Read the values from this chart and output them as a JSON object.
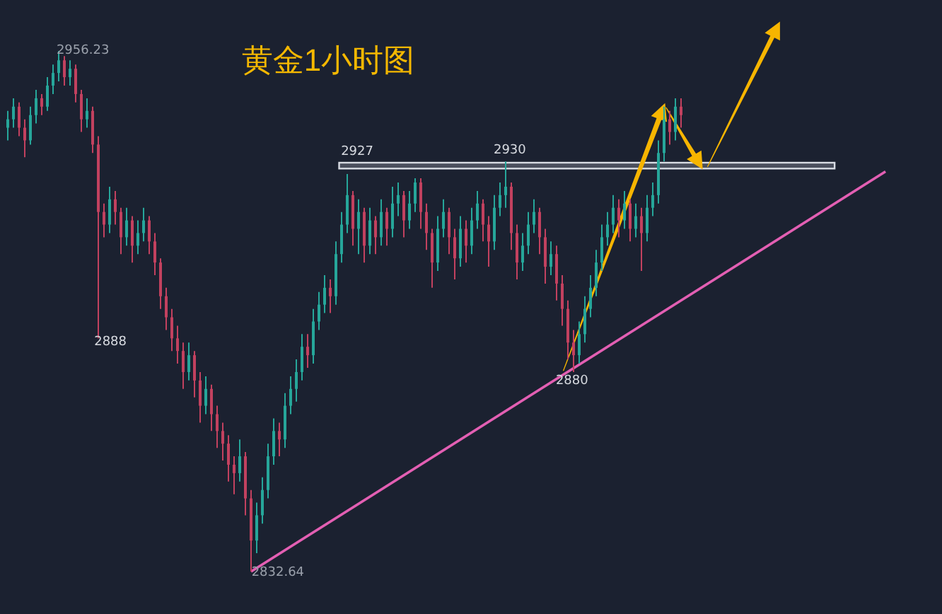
{
  "chart_data": {
    "type": "candlestick",
    "title": "黄金1小时图",
    "categories": [
      null,
      null,
      null,
      null,
      null,
      null,
      null,
      null,
      null,
      null,
      null,
      null,
      null,
      null,
      null,
      null,
      null,
      null,
      null,
      null,
      null,
      null,
      null,
      null,
      null,
      null,
      null,
      null,
      null,
      null,
      null,
      null,
      null,
      null,
      null,
      null,
      null,
      null,
      null,
      null,
      null,
      null,
      null,
      null,
      null,
      null,
      null,
      null,
      null,
      null,
      null,
      null,
      null,
      null,
      null,
      null,
      null,
      null,
      null,
      null,
      null,
      null,
      null,
      null,
      null,
      null,
      null,
      null,
      null,
      null,
      null,
      null,
      null,
      null,
      null,
      null,
      null,
      null,
      null,
      null,
      null,
      null,
      null,
      null,
      null,
      null,
      null,
      null,
      null,
      null,
      null,
      null,
      null,
      null,
      null,
      null,
      null,
      null,
      null,
      null,
      null,
      null,
      null,
      null,
      null,
      null,
      null,
      null,
      null,
      null,
      null,
      null,
      null,
      null,
      null,
      null,
      null,
      null,
      null,
      null
    ],
    "ohlc": [
      [
        2938,
        2942,
        2935,
        2940
      ],
      [
        2940,
        2945,
        2938,
        2943
      ],
      [
        2943,
        2944,
        2936,
        2938
      ],
      [
        2938,
        2940,
        2931,
        2935
      ],
      [
        2935,
        2943,
        2934,
        2941
      ],
      [
        2941,
        2947,
        2939,
        2945
      ],
      [
        2945,
        2946,
        2941,
        2943
      ],
      [
        2943,
        2950,
        2942,
        2948
      ],
      [
        2948,
        2953,
        2946,
        2951
      ],
      [
        2951,
        2956.23,
        2949,
        2954
      ],
      [
        2954,
        2955,
        2948,
        2950
      ],
      [
        2950,
        2954,
        2948,
        2952
      ],
      [
        2952,
        2953,
        2944,
        2946
      ],
      [
        2946,
        2947,
        2937,
        2940
      ],
      [
        2940,
        2945,
        2938,
        2942
      ],
      [
        2942,
        2943,
        2932,
        2934
      ],
      [
        2934,
        2936,
        2888,
        2918
      ],
      [
        2918,
        2920,
        2912,
        2915
      ],
      [
        2915,
        2924,
        2913,
        2921
      ],
      [
        2921,
        2923,
        2915,
        2918
      ],
      [
        2918,
        2919,
        2908,
        2912
      ],
      [
        2912,
        2919,
        2910,
        2916
      ],
      [
        2916,
        2917,
        2906,
        2910
      ],
      [
        2910,
        2916,
        2908,
        2913
      ],
      [
        2913,
        2919,
        2911,
        2916
      ],
      [
        2916,
        2917,
        2908,
        2911
      ],
      [
        2911,
        2913,
        2903,
        2906
      ],
      [
        2906,
        2907,
        2895,
        2898
      ],
      [
        2898,
        2900,
        2890,
        2893
      ],
      [
        2893,
        2895,
        2885,
        2888
      ],
      [
        2888,
        2891,
        2882,
        2885
      ],
      [
        2885,
        2887,
        2876,
        2880
      ],
      [
        2880,
        2887,
        2878,
        2884
      ],
      [
        2884,
        2885,
        2874,
        2878
      ],
      [
        2878,
        2880,
        2868,
        2872
      ],
      [
        2872,
        2879,
        2870,
        2876
      ],
      [
        2876,
        2877,
        2866,
        2870
      ],
      [
        2870,
        2872,
        2862,
        2866
      ],
      [
        2866,
        2868,
        2859,
        2863
      ],
      [
        2863,
        2865,
        2854,
        2858
      ],
      [
        2858,
        2860,
        2851,
        2856
      ],
      [
        2856,
        2864,
        2854,
        2860
      ],
      [
        2860,
        2861,
        2846,
        2850
      ],
      [
        2850,
        2852,
        2832.64,
        2840
      ],
      [
        2840,
        2849,
        2837,
        2846
      ],
      [
        2846,
        2855,
        2844,
        2852
      ],
      [
        2852,
        2863,
        2850,
        2860
      ],
      [
        2860,
        2869,
        2858,
        2866
      ],
      [
        2866,
        2868,
        2860,
        2864
      ],
      [
        2864,
        2875,
        2862,
        2872
      ],
      [
        2872,
        2879,
        2870,
        2876
      ],
      [
        2876,
        2883,
        2873,
        2880
      ],
      [
        2880,
        2889,
        2878,
        2886
      ],
      [
        2886,
        2889,
        2881,
        2884
      ],
      [
        2884,
        2895,
        2882,
        2892
      ],
      [
        2892,
        2899,
        2890,
        2896
      ],
      [
        2896,
        2903,
        2894,
        2900
      ],
      [
        2900,
        2902,
        2894,
        2898
      ],
      [
        2898,
        2911,
        2896,
        2908
      ],
      [
        2908,
        2918,
        2906,
        2915
      ],
      [
        2915,
        2927,
        2913,
        2922
      ],
      [
        2922,
        2923,
        2910,
        2914
      ],
      [
        2914,
        2921,
        2908,
        2918
      ],
      [
        2918,
        2919,
        2906,
        2910
      ],
      [
        2910,
        2919,
        2908,
        2916
      ],
      [
        2916,
        2917,
        2908,
        2912
      ],
      [
        2912,
        2921,
        2910,
        2918
      ],
      [
        2918,
        2919,
        2910,
        2914
      ],
      [
        2914,
        2924,
        2912,
        2920
      ],
      [
        2920,
        2925,
        2917,
        2922
      ],
      [
        2922,
        2923,
        2912,
        2916
      ],
      [
        2916,
        2923,
        2914,
        2920
      ],
      [
        2920,
        2926,
        2918,
        2925
      ],
      [
        2925,
        2926,
        2914,
        2918
      ],
      [
        2918,
        2920,
        2909,
        2913
      ],
      [
        2913,
        2914,
        2900,
        2906
      ],
      [
        2906,
        2917,
        2904,
        2914
      ],
      [
        2914,
        2921,
        2912,
        2918
      ],
      [
        2918,
        2919,
        2908,
        2912
      ],
      [
        2912,
        2914,
        2902,
        2907
      ],
      [
        2907,
        2917,
        2905,
        2914
      ],
      [
        2914,
        2916,
        2906,
        2910
      ],
      [
        2910,
        2919,
        2908,
        2916
      ],
      [
        2916,
        2923,
        2914,
        2920
      ],
      [
        2920,
        2921,
        2911,
        2915
      ],
      [
        2915,
        2917,
        2905,
        2911
      ],
      [
        2911,
        2922,
        2909,
        2919
      ],
      [
        2919,
        2925,
        2917,
        2922
      ],
      [
        2922,
        2930,
        2919,
        2924
      ],
      [
        2924,
        2925,
        2909,
        2913
      ],
      [
        2913,
        2915,
        2902,
        2906
      ],
      [
        2906,
        2913,
        2904,
        2910
      ],
      [
        2910,
        2918,
        2908,
        2915
      ],
      [
        2915,
        2921,
        2913,
        2918
      ],
      [
        2918,
        2919,
        2908,
        2912
      ],
      [
        2912,
        2914,
        2901,
        2905
      ],
      [
        2905,
        2911,
        2903,
        2908
      ],
      [
        2908,
        2910,
        2897,
        2901
      ],
      [
        2901,
        2903,
        2891,
        2895
      ],
      [
        2895,
        2897,
        2883,
        2887
      ],
      [
        2887,
        2890,
        2880,
        2884
      ],
      [
        2884,
        2892,
        2882,
        2889
      ],
      [
        2889,
        2898,
        2887,
        2895
      ],
      [
        2895,
        2903,
        2893,
        2900
      ],
      [
        2900,
        2909,
        2898,
        2906
      ],
      [
        2906,
        2915,
        2904,
        2912
      ],
      [
        2912,
        2918,
        2910,
        2915
      ],
      [
        2915,
        2922,
        2913,
        2919
      ],
      [
        2919,
        2921,
        2912,
        2916
      ],
      [
        2916,
        2923,
        2914,
        2920
      ],
      [
        2920,
        2921,
        2911,
        2914
      ],
      [
        2914,
        2920,
        2912,
        2917
      ],
      [
        2917,
        2919,
        2904,
        2913
      ],
      [
        2913,
        2922,
        2911,
        2919
      ],
      [
        2919,
        2925,
        2917,
        2922
      ],
      [
        2922,
        2935,
        2920,
        2932
      ],
      [
        2932,
        2943,
        2930,
        2940
      ],
      [
        2940,
        2942,
        2934,
        2937
      ],
      [
        2937,
        2945,
        2935,
        2943
      ],
      [
        2943,
        2945,
        2938,
        2941
      ]
    ],
    "colors": [
      "#26a69a",
      "#26a69a",
      "#c2415f",
      "#c2415f",
      "#26a69a",
      "#26a69a",
      "#c2415f",
      "#26a69a",
      "#26a69a",
      "#26a69a",
      "#c2415f",
      "#26a69a",
      "#c2415f",
      "#c2415f",
      "#26a69a",
      "#c2415f",
      "#c2415f",
      "#c2415f",
      "#26a69a",
      "#c2415f",
      "#c2415f",
      "#26a69a",
      "#c2415f",
      "#26a69a",
      "#26a69a",
      "#c2415f",
      "#c2415f",
      "#c2415f",
      "#c2415f",
      "#c2415f",
      "#c2415f",
      "#c2415f",
      "#26a69a",
      "#c2415f",
      "#c2415f",
      "#26a69a",
      "#c2415f",
      "#c2415f",
      "#c2415f",
      "#c2415f",
      "#c2415f",
      "#26a69a",
      "#c2415f",
      "#c2415f",
      "#26a69a",
      "#26a69a",
      "#26a69a",
      "#26a69a",
      "#c2415f",
      "#26a69a",
      "#26a69a",
      "#26a69a",
      "#26a69a",
      "#c2415f",
      "#26a69a",
      "#26a69a",
      "#26a69a",
      "#c2415f",
      "#26a69a",
      "#26a69a",
      "#26a69a",
      "#c2415f",
      "#26a69a",
      "#c2415f",
      "#26a69a",
      "#c2415f",
      "#26a69a",
      "#c2415f",
      "#26a69a",
      "#26a69a",
      "#c2415f",
      "#26a69a",
      "#26a69a",
      "#c2415f",
      "#c2415f",
      "#c2415f",
      "#26a69a",
      "#26a69a",
      "#c2415f",
      "#c2415f",
      "#26a69a",
      "#c2415f",
      "#26a69a",
      "#26a69a",
      "#c2415f",
      "#c2415f",
      "#26a69a",
      "#26a69a",
      "#26a69a",
      "#c2415f",
      "#c2415f",
      "#26a69a",
      "#26a69a",
      "#26a69a",
      "#c2415f",
      "#c2415f",
      "#26a69a",
      "#c2415f",
      "#c2415f",
      "#c2415f",
      "#c2415f",
      "#26a69a",
      "#26a69a",
      "#26a69a",
      "#26a69a",
      "#26a69a",
      "#26a69a",
      "#26a69a",
      "#c2415f",
      "#26a69a",
      "#c2415f",
      "#26a69a",
      "#c2415f",
      "#26a69a",
      "#26a69a",
      "#26a69a",
      "#26a69a",
      "#c2415f",
      "#26a69a",
      "#c2415f"
    ],
    "series": [
      {
        "type": "line",
        "values": [
          null,
          null,
          null,
          null,
          null,
          null,
          null,
          null,
          null,
          null,
          null,
          null,
          null,
          null,
          null,
          null,
          null,
          null,
          null,
          null,
          null,
          null,
          null,
          null,
          null,
          null,
          null,
          null,
          null,
          null,
          null,
          null,
          null,
          null,
          null,
          null,
          null,
          null,
          null,
          null,
          null,
          null,
          null,
          2832.64,
          null,
          null,
          null,
          null,
          null,
          null,
          null,
          null,
          null,
          null,
          null,
          null,
          null,
          null,
          null,
          null,
          null,
          null,
          null,
          null,
          null,
          null,
          null,
          null,
          null,
          null,
          null,
          null,
          null,
          null,
          null,
          null,
          null,
          null,
          null,
          null,
          null,
          null,
          null,
          null,
          null,
          null,
          null,
          null,
          null,
          null,
          null,
          null,
          null,
          null,
          null,
          null,
          null,
          null,
          null,
          null,
          null,
          null,
          null,
          null,
          null,
          null,
          null,
          null,
          null,
          null,
          null,
          null,
          null,
          null,
          null,
          null,
          null,
          null,
          null,
          2897
        ],
        "color": "#e35fb3"
      }
    ],
    "bands": [
      {
        "axis": "y",
        "from": 2928.3,
        "to": 2929.7,
        "color": "#d8dce4"
      }
    ],
    "annotations": [
      "2956.23",
      "2888",
      "2832.64",
      "2927",
      "2930",
      "2880"
    ]
  }
}
